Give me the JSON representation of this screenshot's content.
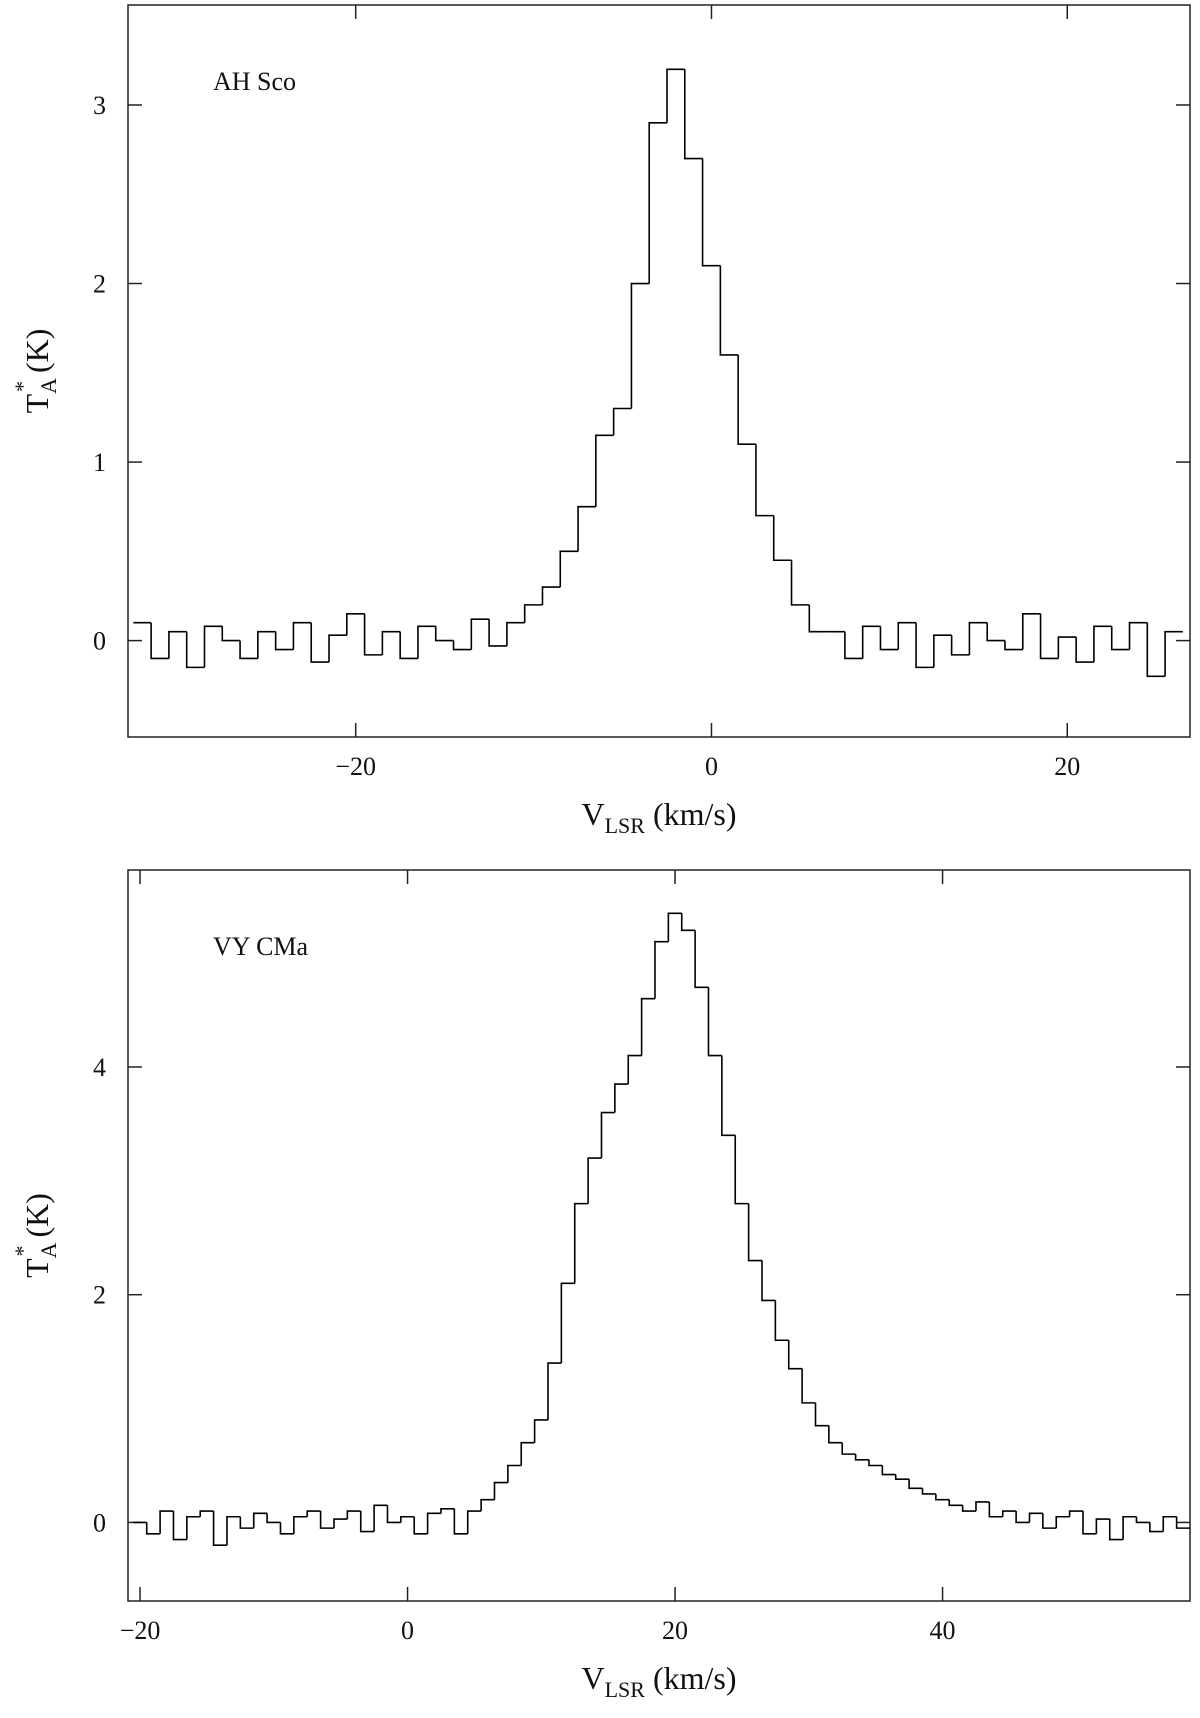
{
  "chart_data": [
    {
      "type": "step",
      "label": "AH Sco",
      "xlabel": [
        "V",
        "LSR",
        " (km/s)"
      ],
      "ylabel": [
        "T",
        "A",
        "*",
        " (K)"
      ],
      "xlim": [
        -32.8,
        26.9
      ],
      "ylim": [
        -0.54,
        3.56
      ],
      "xticks": [
        {
          "value": -20,
          "label": "−20"
        },
        0,
        20
      ],
      "yticks": [
        0,
        1,
        2,
        3
      ],
      "color": "#000000",
      "x": [
        -32,
        -31,
        -30,
        -29,
        -28,
        -27,
        -26,
        -25,
        -24,
        -23,
        -22,
        -21,
        -20,
        -19,
        -18,
        -17,
        -16,
        -15,
        -14,
        -13,
        -12,
        -11,
        -10,
        -9,
        -8,
        -7,
        -6,
        -5,
        -4,
        -3,
        -2,
        -1,
        0,
        1,
        2,
        3,
        4,
        5,
        6,
        7,
        8,
        9,
        10,
        11,
        12,
        13,
        14,
        15,
        16,
        17,
        18,
        19,
        20,
        21,
        22,
        23,
        24,
        25,
        26
      ],
      "values": [
        0.1,
        -0.1,
        0.05,
        -0.15,
        0.08,
        0,
        -0.1,
        0.05,
        -0.05,
        0.1,
        -0.12,
        0.03,
        0.15,
        -0.08,
        0.05,
        -0.1,
        0.08,
        0,
        -0.05,
        0.12,
        -0.03,
        0.1,
        0.2,
        0.3,
        0.5,
        0.75,
        1.15,
        1.3,
        2.0,
        2.9,
        3.2,
        2.7,
        2.1,
        1.6,
        1.1,
        0.7,
        0.45,
        0.2,
        0.05,
        0.05,
        -0.1,
        0.08,
        -0.05,
        0.1,
        -0.15,
        0.03,
        -0.08,
        0.1,
        0,
        -0.05,
        0.15,
        -0.1,
        0.02,
        -0.12,
        0.08,
        -0.05,
        0.1,
        -0.2,
        0.05
      ]
    },
    {
      "type": "step",
      "label": "VY CMa",
      "xlabel": [
        "V",
        "LSR",
        " (km/s)"
      ],
      "ylabel": [
        "T",
        "A",
        "*",
        " (K)"
      ],
      "xlim": [
        -20.9,
        58.5
      ],
      "ylim": [
        -0.69,
        5.73
      ],
      "xticks": [
        {
          "value": -20,
          "label": "−20"
        },
        0,
        20,
        40
      ],
      "yticks": [
        0,
        2,
        4
      ],
      "color": "#000000",
      "x": [
        -20,
        -19,
        -18,
        -17,
        -16,
        -15,
        -14,
        -13,
        -12,
        -11,
        -10,
        -9,
        -8,
        -7,
        -6,
        -5,
        -4,
        -3,
        -2,
        -1,
        0,
        1,
        2,
        3,
        4,
        5,
        6,
        7,
        8,
        9,
        10,
        11,
        12,
        13,
        14,
        15,
        16,
        17,
        18,
        19,
        20,
        21,
        22,
        23,
        24,
        25,
        26,
        27,
        28,
        29,
        30,
        31,
        32,
        33,
        34,
        35,
        36,
        37,
        38,
        39,
        40,
        41,
        42,
        43,
        44,
        45,
        46,
        47,
        48,
        49,
        50,
        51,
        52,
        53,
        54,
        55,
        56,
        57,
        58
      ],
      "values": [
        0,
        -0.1,
        0.1,
        -0.15,
        0.05,
        0.1,
        -0.2,
        0.05,
        -0.05,
        0.08,
        0,
        -0.1,
        0.05,
        0.1,
        -0.05,
        0.03,
        0.1,
        -0.08,
        0.15,
        0,
        0.05,
        -0.1,
        0.08,
        0.12,
        -0.1,
        0.1,
        0.2,
        0.35,
        0.5,
        0.7,
        0.9,
        1.4,
        2.1,
        2.8,
        3.2,
        3.6,
        3.85,
        4.1,
        4.6,
        5.1,
        5.35,
        5.2,
        4.7,
        4.1,
        3.4,
        2.8,
        2.3,
        1.95,
        1.6,
        1.35,
        1.05,
        0.85,
        0.7,
        0.6,
        0.55,
        0.5,
        0.42,
        0.38,
        0.3,
        0.25,
        0.2,
        0.15,
        0.1,
        0.18,
        0.05,
        0.1,
        0,
        0.08,
        -0.05,
        0.05,
        0.1,
        -0.1,
        0.03,
        -0.15,
        0.05,
        0,
        -0.08,
        0.05,
        -0.05
      ]
    }
  ]
}
